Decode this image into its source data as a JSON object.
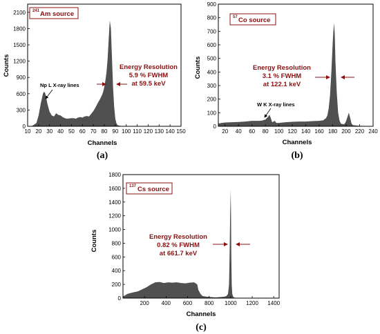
{
  "colors": {
    "fill": "#505050",
    "annotation": "#8b1010",
    "axis": "#000000"
  },
  "chart_data": [
    {
      "type": "area",
      "panel_label": "(a)",
      "source": {
        "isotope": "241",
        "label": "Am source"
      },
      "xlabel": "Channels",
      "ylabel": "Counts",
      "xlim": [
        10,
        150
      ],
      "ylim": [
        0,
        2250
      ],
      "xticks": [
        "10",
        "20",
        "30",
        "40",
        "50",
        "60",
        "70",
        "80",
        "90",
        "100",
        "110",
        "120",
        "130",
        "140",
        "150"
      ],
      "yticks": [
        "0",
        "300",
        "600",
        "900",
        "1200",
        "1500",
        "1800",
        "2100"
      ],
      "x": [
        10,
        14,
        18,
        20,
        22,
        24,
        25,
        26,
        27,
        28,
        30,
        32,
        34,
        36,
        38,
        40,
        42,
        44,
        46,
        48,
        50,
        52,
        54,
        56,
        58,
        60,
        62,
        64,
        66,
        68,
        70,
        72,
        74,
        76,
        78,
        79,
        80,
        81,
        82,
        83,
        84,
        85,
        86,
        87,
        88,
        89,
        90,
        91,
        92,
        94,
        96,
        98,
        100,
        110,
        130,
        150
      ],
      "y": [
        0,
        5,
        60,
        200,
        420,
        600,
        640,
        610,
        520,
        420,
        270,
        200,
        180,
        240,
        210,
        200,
        170,
        150,
        140,
        145,
        150,
        150,
        140,
        160,
        170,
        160,
        180,
        190,
        180,
        230,
        280,
        350,
        430,
        500,
        580,
        640,
        730,
        850,
        1000,
        1250,
        1600,
        1950,
        1800,
        1250,
        700,
        350,
        140,
        60,
        20,
        10,
        5,
        3,
        2,
        1,
        0,
        0
      ],
      "annotations": {
        "x_ray": "Np L X-ray lines",
        "res_line1": "Energy Resolution",
        "res_line2": "5.9 % FWHM",
        "res_line3": "at 59.5 keV"
      }
    },
    {
      "type": "area",
      "panel_label": "(b)",
      "source": {
        "isotope": "57",
        "label": "Co source"
      },
      "xlabel": "Channels",
      "ylabel": "Counts",
      "xlim": [
        10,
        240
      ],
      "ylim": [
        0,
        900
      ],
      "xticks": [
        "20",
        "40",
        "60",
        "80",
        "100",
        "120",
        "140",
        "160",
        "180",
        "200",
        "220",
        "240"
      ],
      "yticks": [
        "0",
        "100",
        "200",
        "300",
        "400",
        "500",
        "600",
        "700",
        "800",
        "900"
      ],
      "x": [
        10,
        15,
        20,
        30,
        40,
        50,
        60,
        70,
        75,
        80,
        82,
        84,
        86,
        88,
        90,
        92,
        94,
        96,
        100,
        110,
        120,
        130,
        140,
        150,
        160,
        166,
        170,
        172,
        174,
        176,
        178,
        180,
        181,
        182,
        183,
        184,
        186,
        188,
        190,
        192,
        196,
        198,
        200,
        202,
        204,
        206,
        208,
        210,
        220,
        240
      ],
      "y": [
        20,
        25,
        28,
        30,
        32,
        35,
        40,
        40,
        42,
        50,
        60,
        70,
        85,
        60,
        30,
        35,
        40,
        25,
        25,
        30,
        33,
        35,
        35,
        38,
        40,
        45,
        60,
        80,
        130,
        230,
        400,
        620,
        700,
        760,
        680,
        480,
        250,
        100,
        45,
        20,
        15,
        20,
        40,
        70,
        100,
        60,
        20,
        8,
        3,
        1
      ],
      "annotations": {
        "x_ray": "W K X-ray lines",
        "res_line1": "Energy Resolution",
        "res_line2": "3.1 % FWHM",
        "res_line3": "at 122.1 keV"
      }
    },
    {
      "type": "area",
      "panel_label": "(c)",
      "source": {
        "isotope": "137",
        "label": "Cs source"
      },
      "xlabel": "Channels",
      "ylabel": "Counts",
      "xlim": [
        0,
        1450
      ],
      "ylim": [
        0,
        1800
      ],
      "xticks": [
        "200",
        "400",
        "600",
        "800",
        "1000",
        "1200",
        "1400"
      ],
      "yticks": [
        "0",
        "200",
        "400",
        "600",
        "800",
        "1000",
        "1200",
        "1400",
        "1600",
        "1800"
      ],
      "x": [
        0,
        20,
        40,
        60,
        100,
        140,
        180,
        220,
        260,
        300,
        340,
        380,
        420,
        460,
        500,
        540,
        580,
        620,
        660,
        690,
        700,
        720,
        740,
        780,
        820,
        860,
        900,
        940,
        960,
        975,
        985,
        990,
        995,
        1000,
        1003,
        1006,
        1010,
        1015,
        1025,
        1040,
        1100,
        1200,
        1300,
        1450
      ],
      "y": [
        25,
        40,
        60,
        70,
        85,
        100,
        130,
        160,
        200,
        230,
        235,
        220,
        230,
        225,
        230,
        220,
        215,
        225,
        230,
        200,
        120,
        60,
        30,
        20,
        15,
        10,
        15,
        20,
        30,
        60,
        200,
        600,
        1200,
        1580,
        1300,
        600,
        200,
        60,
        15,
        5,
        3,
        1,
        0,
        0
      ],
      "annotations": {
        "res_line1": "Energy Resolution",
        "res_line2": "0.82 % FWHM",
        "res_line3": "at 661.7 keV"
      }
    }
  ]
}
